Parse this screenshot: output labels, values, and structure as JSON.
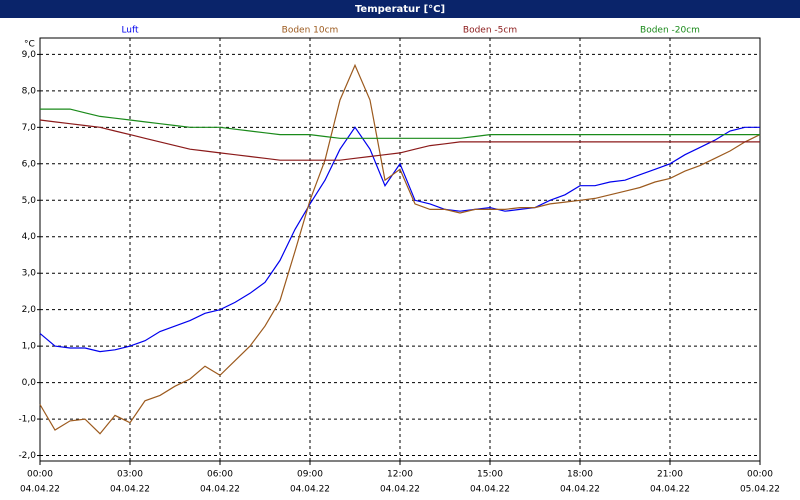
{
  "chart_data": {
    "type": "line",
    "title": "Temperatur [°C]",
    "y_unit": "°C",
    "x": [
      0,
      0.5,
      1,
      1.5,
      2,
      2.5,
      3,
      3.5,
      4,
      4.5,
      5,
      5.5,
      6,
      6.5,
      7,
      7.5,
      8,
      8.5,
      9,
      9.5,
      10,
      10.5,
      11,
      11.5,
      12,
      12.5,
      13,
      13.5,
      14,
      14.5,
      15,
      15.5,
      16,
      16.5,
      17,
      17.5,
      18,
      18.5,
      19,
      19.5,
      20,
      20.5,
      21,
      21.5,
      22,
      22.5,
      23,
      23.5,
      24
    ],
    "series": [
      {
        "name": "Luft",
        "color": "#0000ee",
        "values": [
          1.35,
          1.0,
          0.95,
          0.95,
          0.85,
          0.9,
          1.0,
          1.15,
          1.4,
          1.55,
          1.7,
          1.9,
          2.0,
          2.2,
          2.45,
          2.75,
          3.35,
          4.2,
          4.9,
          5.55,
          6.4,
          7.0,
          6.4,
          5.4,
          6.0,
          5.0,
          4.9,
          4.75,
          4.7,
          4.75,
          4.8,
          4.7,
          4.75,
          4.8,
          5.0,
          5.15,
          5.4,
          5.4,
          5.5,
          5.55,
          5.7,
          5.85,
          6.0,
          6.25,
          6.45,
          6.65,
          6.9,
          7.0,
          7.0
        ]
      },
      {
        "name": "Boden 10cm",
        "color": "#9c5a1e",
        "values": [
          -0.6,
          -1.3,
          -1.05,
          -1.0,
          -1.4,
          -0.9,
          -1.1,
          -0.5,
          -0.35,
          -0.1,
          0.1,
          0.45,
          0.2,
          0.6,
          1.0,
          1.55,
          2.25,
          3.6,
          5.0,
          6.1,
          7.75,
          8.7,
          7.75,
          5.55,
          5.85,
          4.9,
          4.75,
          4.75,
          4.65,
          4.75,
          4.75,
          4.75,
          4.8,
          4.8,
          4.9,
          4.95,
          5.0,
          5.05,
          5.15,
          5.25,
          5.35,
          5.5,
          5.6,
          5.8,
          5.95,
          6.15,
          6.35,
          6.6,
          6.8
        ]
      },
      {
        "name": "Boden -5cm",
        "color": "#8b1a1a",
        "values": [
          7.2,
          7.15,
          7.1,
          7.05,
          7.0,
          6.9,
          6.8,
          6.7,
          6.6,
          6.5,
          6.4,
          6.35,
          6.3,
          6.25,
          6.2,
          6.15,
          6.1,
          6.1,
          6.1,
          6.1,
          6.1,
          6.15,
          6.2,
          6.25,
          6.3,
          6.4,
          6.5,
          6.55,
          6.6,
          6.6,
          6.6,
          6.6,
          6.6,
          6.6,
          6.6,
          6.6,
          6.6,
          6.6,
          6.6,
          6.6,
          6.6,
          6.6,
          6.6,
          6.6,
          6.6,
          6.6,
          6.6,
          6.6,
          6.6
        ]
      },
      {
        "name": "Boden -20cm",
        "color": "#1a8a1a",
        "values": [
          7.5,
          7.5,
          7.5,
          7.4,
          7.3,
          7.25,
          7.2,
          7.15,
          7.1,
          7.05,
          7.0,
          7.0,
          7.0,
          6.95,
          6.9,
          6.85,
          6.8,
          6.8,
          6.8,
          6.75,
          6.7,
          6.7,
          6.7,
          6.7,
          6.7,
          6.7,
          6.7,
          6.7,
          6.7,
          6.75,
          6.8,
          6.8,
          6.8,
          6.8,
          6.8,
          6.8,
          6.8,
          6.8,
          6.8,
          6.8,
          6.8,
          6.8,
          6.8,
          6.8,
          6.8,
          6.8,
          6.8,
          6.8,
          6.8
        ]
      }
    ],
    "xlim": [
      0,
      24
    ],
    "xticks": [
      {
        "value": 0,
        "label": "00:00"
      },
      {
        "value": 3,
        "label": "03:00"
      },
      {
        "value": 6,
        "label": "06:00"
      },
      {
        "value": 9,
        "label": "09:00"
      },
      {
        "value": 12,
        "label": "12:00"
      },
      {
        "value": 15,
        "label": "15:00"
      },
      {
        "value": 18,
        "label": "18:00"
      },
      {
        "value": 21,
        "label": "21:00"
      },
      {
        "value": 24,
        "label": "00:00"
      }
    ],
    "xtick_sublabels": [
      "04.04.22",
      "04.04.22",
      "04.04.22",
      "04.04.22",
      "04.04.22",
      "04.04.22",
      "04.04.22",
      "04.04.22",
      "05.04.22"
    ],
    "ylim": [
      -2.15,
      9.45
    ],
    "yticks": [
      {
        "value": -2,
        "label": "-2,0"
      },
      {
        "value": -1,
        "label": "-1,0"
      },
      {
        "value": 0,
        "label": "0,0"
      },
      {
        "value": 1,
        "label": "1,0"
      },
      {
        "value": 2,
        "label": "2,0"
      },
      {
        "value": 3,
        "label": "3,0"
      },
      {
        "value": 4,
        "label": "4,0"
      },
      {
        "value": 5,
        "label": "5,0"
      },
      {
        "value": 6,
        "label": "6,0"
      },
      {
        "value": 7,
        "label": "7,0"
      },
      {
        "value": 8,
        "label": "8,0"
      },
      {
        "value": 9,
        "label": "9,0"
      }
    ],
    "grid": true,
    "legend": "top"
  }
}
